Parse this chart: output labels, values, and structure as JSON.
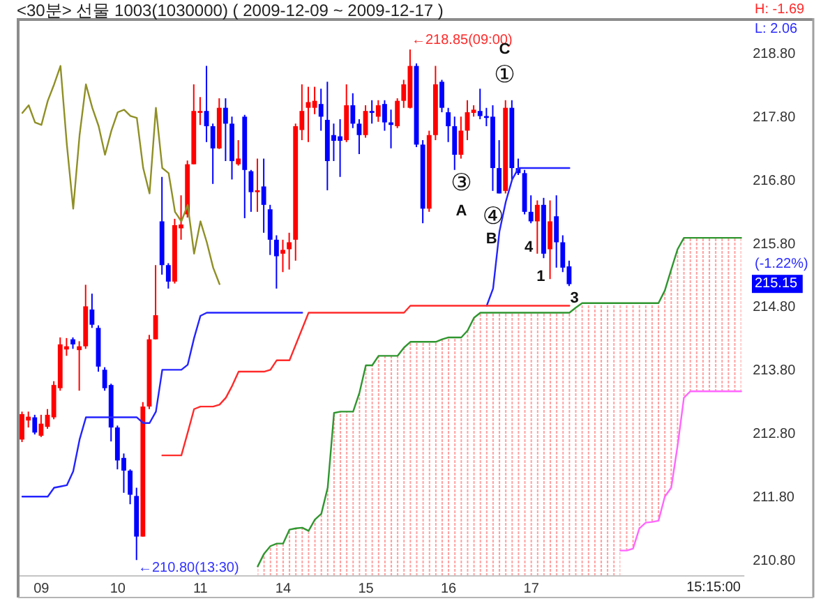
{
  "chart_data": {
    "type": "candlestick",
    "title": "<30분> 선물 1003(1030000) ( 2009-12-09 ~ 2009-12-17 )",
    "categories": [
      null,
      null,
      null,
      "09",
      null,
      null,
      null,
      null,
      null,
      null,
      null,
      null,
      null,
      null,
      null,
      "10",
      null,
      null,
      null,
      null,
      null,
      null,
      null,
      null,
      null,
      null,
      null,
      null,
      "11",
      null,
      null,
      null,
      null,
      null,
      null,
      null,
      null,
      null,
      null,
      null,
      null,
      "14",
      null,
      null,
      null,
      null,
      null,
      null,
      null,
      null,
      null,
      null,
      null,
      null,
      "15",
      null,
      null,
      null,
      null,
      null,
      null,
      null,
      null,
      null,
      null,
      null,
      null,
      "16",
      null,
      null,
      null,
      null,
      null,
      null,
      null,
      null,
      null,
      null,
      null,
      null,
      "17",
      null,
      null,
      null,
      null,
      null,
      null,
      null,
      null,
      null,
      null,
      null,
      null,
      null,
      null,
      null,
      null,
      null,
      null,
      null,
      null,
      null,
      null,
      null,
      null,
      null,
      null,
      null,
      null,
      null,
      null,
      null,
      null,
      null
    ],
    "ylim": [
      210.55,
      219.3
    ],
    "yticks": [
      {
        "value": 210.8,
        "label": "210.80"
      },
      {
        "value": 211.8,
        "label": "211.80"
      },
      {
        "value": 212.8,
        "label": "212.80"
      },
      {
        "value": 213.8,
        "label": "213.80"
      },
      {
        "value": 214.8,
        "label": "214.80"
      },
      {
        "value": 215.8,
        "label": "215.80"
      },
      {
        "value": 216.8,
        "label": "216.80"
      },
      {
        "value": 217.8,
        "label": "217.80"
      },
      {
        "value": 218.8,
        "label": "218.80"
      }
    ],
    "series": [
      {
        "type": "area",
        "color": "#ff8c8c",
        "values": [
          null,
          null,
          null,
          null,
          null,
          null,
          null,
          null,
          null,
          null,
          null,
          null,
          null,
          null,
          null,
          null,
          null,
          null,
          null,
          null,
          null,
          null,
          null,
          null,
          null,
          null,
          null,
          null,
          null,
          null,
          null,
          null,
          null,
          null,
          null,
          null,
          null,
          210.7,
          210.9,
          211.02,
          211.06,
          211.06,
          211.28,
          211.3,
          211.31,
          211.26,
          211.44,
          211.53,
          211.94,
          213.12,
          213.14,
          213.14,
          213.14,
          213.44,
          213.87,
          213.87,
          214.02,
          214.02,
          214.02,
          214.02,
          214.15,
          214.24,
          214.24,
          214.24,
          214.24,
          214.24,
          214.28,
          214.31,
          214.31,
          214.31,
          214.42,
          214.62,
          214.7,
          214.7,
          214.7,
          214.7,
          214.7,
          214.7,
          214.7,
          214.7,
          214.7,
          214.7,
          214.7,
          214.7,
          214.7,
          214.7,
          214.7,
          214.78,
          214.85,
          214.85,
          214.85,
          214.85,
          214.85,
          214.85,
          214.85,
          null,
          null,
          null,
          null,
          null,
          null,
          null,
          null,
          null,
          null,
          null,
          null,
          null,
          null,
          null,
          null,
          null,
          null,
          null
        ],
        "lower": [
          null,
          null,
          null,
          null,
          null,
          null,
          null,
          null,
          null,
          null,
          null,
          null,
          null,
          null,
          null,
          null,
          null,
          null,
          null,
          null,
          null,
          null,
          null,
          null,
          null,
          null,
          null,
          null,
          null,
          null,
          null,
          null,
          null,
          null,
          null,
          null,
          null,
          null,
          null,
          null,
          null,
          null,
          null,
          null,
          null,
          null,
          null,
          null,
          null,
          null,
          null,
          null,
          null,
          null,
          null,
          null,
          null,
          null,
          null,
          null,
          null,
          null,
          null,
          null,
          null,
          null,
          null,
          null,
          null,
          null,
          null,
          null,
          null,
          null,
          null,
          null,
          null,
          null,
          null,
          null,
          null,
          null,
          null,
          null,
          null,
          null,
          null,
          null,
          null,
          null,
          null,
          null,
          null,
          null,
          210.95,
          210.95,
          210.98,
          211.3,
          211.39,
          211.4,
          211.42,
          211.8,
          211.94,
          212.6,
          213.36,
          213.46,
          213.46,
          213.46,
          213.46,
          213.46,
          213.46,
          213.46,
          213.46,
          213.46
        ],
        "upper": [
          null,
          null,
          null,
          null,
          null,
          null,
          null,
          null,
          null,
          null,
          null,
          null,
          null,
          null,
          null,
          null,
          null,
          null,
          null,
          null,
          null,
          null,
          null,
          null,
          null,
          null,
          null,
          null,
          null,
          null,
          null,
          null,
          null,
          null,
          null,
          null,
          null,
          null,
          null,
          null,
          null,
          null,
          null,
          null,
          null,
          null,
          null,
          null,
          null,
          null,
          null,
          null,
          null,
          null,
          null,
          null,
          null,
          null,
          null,
          null,
          null,
          null,
          null,
          null,
          null,
          null,
          null,
          null,
          null,
          null,
          null,
          null,
          null,
          null,
          null,
          null,
          null,
          null,
          null,
          null,
          null,
          null,
          null,
          null,
          null,
          null,
          null,
          null,
          null,
          null,
          null,
          null,
          null,
          null,
          214.85,
          214.85,
          214.85,
          214.85,
          214.85,
          214.85,
          214.85,
          215.05,
          215.38,
          215.7,
          215.88,
          215.88,
          215.88,
          215.88,
          215.88,
          215.88,
          215.88,
          215.88,
          215.88,
          215.88
        ]
      },
      {
        "type": "line",
        "color": "#2f962f",
        "values": [
          null,
          null,
          null,
          null,
          null,
          null,
          null,
          null,
          null,
          null,
          null,
          null,
          null,
          null,
          null,
          null,
          null,
          null,
          null,
          null,
          null,
          null,
          null,
          null,
          null,
          null,
          null,
          null,
          null,
          null,
          null,
          null,
          null,
          null,
          null,
          null,
          null,
          210.7,
          210.9,
          211.02,
          211.06,
          211.06,
          211.28,
          211.3,
          211.31,
          211.26,
          211.44,
          211.53,
          211.94,
          213.12,
          213.14,
          213.14,
          213.14,
          213.44,
          213.87,
          213.87,
          214.02,
          214.02,
          214.02,
          214.02,
          214.15,
          214.24,
          214.24,
          214.24,
          214.24,
          214.24,
          214.28,
          214.31,
          214.31,
          214.31,
          214.42,
          214.62,
          214.7,
          214.7,
          214.7,
          214.7,
          214.7,
          214.7,
          214.7,
          214.7,
          214.7,
          214.7,
          214.7,
          214.7,
          214.7,
          214.7,
          214.7,
          214.78,
          214.85,
          214.85,
          214.85,
          214.85,
          214.85,
          214.85,
          214.85,
          214.85,
          214.85,
          214.85,
          214.85,
          214.85,
          214.85,
          215.05,
          215.38,
          215.7,
          215.88,
          215.88,
          215.88,
          215.88,
          215.88,
          215.88,
          215.88,
          215.88,
          215.88,
          215.88
        ]
      },
      {
        "type": "line",
        "color": "#ff66ff",
        "values": [
          null,
          null,
          null,
          null,
          null,
          null,
          null,
          null,
          null,
          null,
          null,
          null,
          null,
          null,
          null,
          null,
          null,
          null,
          null,
          null,
          null,
          null,
          null,
          null,
          null,
          null,
          null,
          null,
          null,
          null,
          null,
          null,
          null,
          null,
          null,
          null,
          null,
          null,
          null,
          null,
          null,
          null,
          null,
          null,
          null,
          null,
          null,
          null,
          null,
          null,
          null,
          null,
          null,
          null,
          null,
          null,
          null,
          null,
          null,
          null,
          null,
          null,
          null,
          null,
          null,
          null,
          null,
          null,
          null,
          null,
          null,
          null,
          null,
          null,
          null,
          null,
          null,
          null,
          null,
          null,
          null,
          null,
          null,
          null,
          null,
          null,
          null,
          null,
          null,
          null,
          null,
          null,
          null,
          null,
          210.95,
          210.95,
          210.98,
          211.3,
          211.39,
          211.4,
          211.42,
          211.8,
          211.94,
          212.6,
          213.36,
          213.46,
          213.46,
          213.46,
          213.46,
          213.46,
          213.46,
          213.46,
          213.46,
          213.46
        ]
      },
      {
        "type": "line",
        "color": "#8f8f26",
        "values": [
          217.85,
          217.97,
          217.7,
          217.66,
          218.04,
          218.3,
          218.59,
          217.35,
          216.34,
          217.5,
          218.3,
          217.93,
          217.64,
          217.19,
          217.57,
          217.86,
          217.9,
          217.8,
          217.77,
          216.98,
          216.58,
          217.93,
          216.98,
          216.9,
          216.29,
          216.14,
          216.4,
          215.63,
          216.14,
          215.81,
          215.41,
          215.15,
          null,
          null,
          null,
          null,
          null,
          null,
          null,
          null,
          null,
          null,
          null,
          null,
          null,
          null,
          null,
          null,
          null,
          null,
          null,
          null,
          null,
          null,
          null,
          null,
          null,
          null,
          null,
          null,
          null,
          null,
          null,
          null,
          null,
          null,
          null,
          null,
          null,
          null,
          null,
          null,
          null,
          null,
          null,
          null,
          null,
          null,
          null,
          null,
          null,
          null,
          null,
          null,
          null,
          null,
          null,
          null,
          null,
          null,
          null,
          null,
          null,
          null,
          null,
          null,
          null,
          null,
          null,
          null,
          null,
          null,
          null,
          null,
          null,
          null,
          null,
          null,
          null,
          null,
          null,
          null,
          null,
          null
        ]
      },
      {
        "type": "line",
        "color": "#2323ff",
        "values": [
          211.8,
          211.8,
          211.8,
          211.8,
          211.8,
          211.94,
          211.96,
          211.98,
          212.2,
          212.7,
          213.05,
          213.05,
          213.05,
          213.05,
          213.05,
          213.05,
          213.05,
          213.05,
          213.05,
          212.96,
          212.96,
          213.14,
          213.8,
          213.8,
          213.8,
          213.8,
          213.88,
          214.3,
          214.65,
          214.7,
          214.7,
          214.7,
          214.7,
          214.7,
          214.7,
          214.7,
          214.7,
          214.7,
          214.7,
          214.7,
          214.7,
          214.7,
          214.7,
          214.7,
          214.7,
          null,
          null,
          null,
          null,
          null,
          null,
          null,
          null,
          null,
          null,
          null,
          null,
          null,
          null,
          null,
          null,
          null,
          null,
          null,
          null,
          null,
          null,
          null,
          null,
          null,
          null,
          null,
          null,
          214.81,
          215.08,
          215.98,
          216.45,
          216.8,
          216.98,
          216.98,
          216.98,
          216.98,
          216.98,
          216.98,
          216.98,
          216.98,
          216.98,
          null,
          null,
          null,
          null,
          null,
          null,
          null,
          null,
          null,
          null,
          null,
          null,
          null,
          null,
          null,
          null,
          null,
          null,
          null,
          null,
          null,
          null,
          null,
          null,
          null,
          null,
          null
        ]
      },
      {
        "type": "line",
        "color": "#ff2a2a",
        "values": [
          null,
          null,
          null,
          null,
          null,
          null,
          null,
          null,
          null,
          null,
          null,
          null,
          null,
          null,
          null,
          null,
          null,
          null,
          null,
          null,
          null,
          null,
          212.45,
          212.45,
          212.45,
          212.45,
          212.81,
          213.18,
          213.22,
          213.22,
          213.22,
          213.25,
          213.36,
          213.55,
          213.77,
          213.77,
          213.77,
          213.77,
          213.77,
          213.8,
          213.95,
          213.95,
          213.95,
          214.2,
          214.45,
          214.7,
          214.7,
          214.7,
          214.7,
          214.7,
          214.7,
          214.7,
          214.7,
          214.7,
          214.7,
          214.7,
          214.7,
          214.7,
          214.7,
          214.7,
          214.7,
          214.81,
          214.81,
          214.81,
          214.81,
          214.81,
          214.81,
          214.81,
          214.81,
          214.81,
          214.81,
          214.81,
          214.81,
          214.81,
          214.81,
          214.81,
          214.81,
          214.81,
          214.81,
          214.81,
          214.81,
          214.81,
          214.81,
          214.81,
          214.81,
          214.81,
          214.81,
          null,
          null,
          null,
          null,
          null,
          null,
          null,
          null,
          null,
          null,
          null,
          null,
          null,
          null,
          null,
          null,
          null,
          null,
          null,
          null,
          null,
          null,
          null,
          null,
          null,
          null,
          null
        ]
      },
      {
        "ohlc": [
          [
            212.7,
            213.14,
            212.66,
            213.1
          ],
          [
            213.0,
            213.14,
            212.89,
            213.06
          ],
          [
            213.05,
            213.09,
            212.78,
            212.81
          ],
          [
            212.76,
            213.09,
            212.74,
            212.95
          ],
          [
            212.9,
            213.18,
            212.87,
            213.09
          ],
          [
            213.05,
            213.62,
            213.02,
            213.56
          ],
          [
            213.51,
            214.31,
            213.47,
            214.2
          ],
          [
            214.12,
            214.3,
            214.02,
            214.17
          ],
          [
            214.28,
            214.31,
            214.13,
            214.2
          ],
          [
            214.11,
            214.25,
            213.47,
            214.17
          ],
          [
            214.17,
            215.14,
            214.13,
            214.8
          ],
          [
            214.75,
            215.0,
            214.46,
            214.51
          ],
          [
            214.46,
            214.5,
            213.77,
            213.85
          ],
          [
            213.8,
            213.84,
            213.47,
            213.51
          ],
          [
            213.56,
            213.58,
            212.67,
            212.89
          ],
          [
            212.89,
            212.92,
            212.23,
            212.37
          ],
          [
            212.41,
            212.48,
            211.86,
            212.21
          ],
          [
            212.21,
            212.23,
            211.68,
            211.83
          ],
          [
            211.81,
            211.94,
            210.8,
            211.17
          ],
          [
            211.17,
            213.29,
            211.17,
            213.22
          ],
          [
            213.22,
            214.35,
            213.18,
            214.28
          ],
          [
            214.28,
            215.45,
            214.28,
            214.66
          ],
          [
            216.14,
            216.84,
            215.3,
            215.45
          ],
          [
            215.45,
            215.48,
            215.08,
            215.19
          ],
          [
            215.19,
            216.18,
            215.16,
            216.08
          ],
          [
            216.03,
            216.55,
            215.85,
            216.09
          ],
          [
            216.25,
            217.1,
            216.2,
            217.04
          ],
          [
            217.04,
            218.3,
            217.04,
            217.88
          ],
          [
            217.85,
            218.1,
            217.66,
            217.88
          ],
          [
            217.88,
            218.59,
            217.39,
            217.64
          ],
          [
            217.64,
            217.68,
            216.73,
            217.29
          ],
          [
            217.29,
            218.08,
            217.28,
            217.93
          ],
          [
            217.93,
            218.08,
            217.09,
            217.68
          ],
          [
            217.68,
            217.79,
            216.8,
            217.09
          ],
          [
            217.04,
            217.42,
            217.02,
            217.13
          ],
          [
            217.79,
            217.82,
            216.19,
            216.95
          ],
          [
            216.93,
            216.95,
            216.29,
            216.6
          ],
          [
            216.6,
            217.13,
            216.29,
            216.63
          ],
          [
            216.69,
            217.13,
            215.96,
            216.4
          ],
          [
            216.33,
            216.4,
            215.61,
            215.85
          ],
          [
            215.85,
            215.92,
            215.08,
            215.59
          ],
          [
            215.63,
            215.85,
            215.34,
            215.69
          ],
          [
            215.7,
            215.96,
            215.38,
            215.81
          ],
          [
            215.85,
            217.68,
            215.52,
            217.64
          ],
          [
            217.58,
            218.3,
            217.42,
            217.88
          ],
          [
            217.93,
            218.26,
            217.39,
            218.02
          ],
          [
            217.93,
            218.26,
            217.83,
            218.04
          ],
          [
            217.99,
            218.23,
            217.57,
            217.79
          ],
          [
            217.74,
            218.34,
            216.63,
            217.09
          ],
          [
            217.5,
            217.68,
            217.09,
            217.41
          ],
          [
            217.48,
            217.75,
            216.84,
            217.41
          ],
          [
            217.42,
            218.3,
            217.39,
            217.97
          ],
          [
            217.97,
            218.16,
            217.61,
            217.68
          ],
          [
            217.68,
            217.75,
            217.2,
            217.5
          ],
          [
            217.5,
            217.97,
            217.46,
            217.88
          ],
          [
            217.88,
            218.05,
            217.68,
            217.85
          ],
          [
            217.79,
            218.05,
            217.71,
            217.97
          ],
          [
            217.99,
            218.05,
            217.57,
            217.7
          ],
          [
            217.7,
            217.9,
            217.29,
            217.66
          ],
          [
            217.64,
            218.08,
            217.61,
            218.04
          ],
          [
            218.04,
            218.37,
            217.93,
            218.3
          ],
          [
            217.93,
            218.85,
            217.92,
            218.59
          ],
          [
            218.59,
            218.63,
            217.31,
            217.35
          ],
          [
            217.35,
            217.42,
            216.11,
            216.34
          ],
          [
            216.34,
            217.57,
            216.29,
            217.5
          ],
          [
            217.5,
            218.59,
            217.42,
            218.3
          ],
          [
            218.34,
            218.37,
            217.86,
            217.93
          ],
          [
            217.86,
            217.93,
            217.39,
            217.64
          ],
          [
            217.64,
            217.79,
            216.95,
            217.19
          ],
          [
            217.19,
            217.79,
            217.13,
            217.57
          ],
          [
            217.57,
            218.05,
            217.42,
            217.86
          ],
          [
            217.85,
            217.97,
            217.79,
            217.9
          ],
          [
            217.88,
            218.23,
            217.75,
            217.8
          ],
          [
            217.8,
            217.93,
            217.64,
            217.77
          ],
          [
            217.79,
            217.97,
            216.62,
            216.98
          ],
          [
            216.98,
            217.42,
            216.58,
            216.58
          ],
          [
            216.62,
            218.05,
            216.58,
            217.93
          ],
          [
            217.93,
            218.05,
            216.8,
            216.98
          ],
          [
            216.98,
            217.13,
            216.87,
            216.9
          ],
          [
            216.9,
            216.95,
            216.25,
            216.29
          ],
          [
            216.29,
            216.55,
            216.11,
            216.14
          ],
          [
            216.14,
            216.47,
            215.63,
            216.4
          ],
          [
            216.4,
            216.51,
            215.56,
            215.63
          ],
          [
            215.7,
            216.47,
            215.23,
            216.14
          ],
          [
            216.22,
            216.55,
            215.41,
            215.81
          ],
          [
            215.81,
            215.92,
            215.34,
            215.41
          ],
          [
            215.43,
            215.52,
            215.12,
            215.15
          ],
          null,
          null,
          null,
          null,
          null,
          null,
          null,
          null,
          null,
          null,
          null,
          null,
          null,
          null,
          null,
          null,
          null,
          null,
          null,
          null,
          null,
          null,
          null,
          null,
          null,
          null,
          null
        ],
        "colors": [
          "#ff0000",
          "#ff0000",
          "#0000ff",
          "#ff0000",
          "#ff0000",
          "#ff0000",
          "#ff0000",
          "#ff0000",
          "#0000ff",
          "#ff0000",
          "#ff0000",
          "#0000ff",
          "#0000ff",
          "#0000ff",
          "#0000ff",
          "#0000ff",
          "#0000ff",
          "#0000ff",
          "#0000ff",
          "#ff0000",
          "#ff0000",
          "#ff0000",
          "#0000ff",
          "#0000ff",
          "#ff0000",
          "#ff0000",
          "#ff0000",
          "#ff0000",
          "#ff0000",
          "#0000ff",
          "#0000ff",
          "#ff0000",
          "#0000ff",
          "#0000ff",
          "#ff0000",
          "#0000ff",
          "#0000ff",
          "#ff0000",
          "#0000ff",
          "#0000ff",
          "#0000ff",
          "#ff0000",
          "#ff0000",
          "#ff0000",
          "#ff0000",
          "#ff0000",
          "#ff0000",
          "#0000ff",
          "#0000ff",
          "#0000ff",
          "#0000ff",
          "#ff0000",
          "#0000ff",
          "#0000ff",
          "#ff0000",
          "#0000ff",
          "#ff0000",
          "#0000ff",
          "#0000ff",
          "#ff0000",
          "#ff0000",
          "#ff0000",
          "#0000ff",
          "#0000ff",
          "#ff0000",
          "#ff0000",
          "#0000ff",
          "#0000ff",
          "#0000ff",
          "#ff0000",
          "#ff0000",
          "#ff0000",
          "#0000ff",
          "#0000ff",
          "#0000ff",
          "#0000ff",
          "#ff0000",
          "#0000ff",
          "#0000ff",
          "#0000ff",
          "#0000ff",
          "#ff0000",
          "#0000ff",
          "#ff0000",
          "#0000ff",
          "#0000ff",
          "#0000ff",
          null,
          null,
          null,
          null,
          null,
          null,
          null,
          null,
          null,
          null,
          null,
          null,
          null,
          null,
          null,
          null,
          null,
          null,
          null,
          null,
          null,
          null,
          null,
          null,
          null,
          null,
          null
        ]
      }
    ],
    "annotations": [
      "←218.85(09:00)",
      "←210.80(13:30)",
      "C",
      "①",
      "③",
      "A",
      "④",
      "B",
      "4",
      "1",
      "3",
      "H: -1.69",
      "L: 2.06",
      "215.15",
      "(-1.22%)",
      "15:15:00"
    ]
  }
}
